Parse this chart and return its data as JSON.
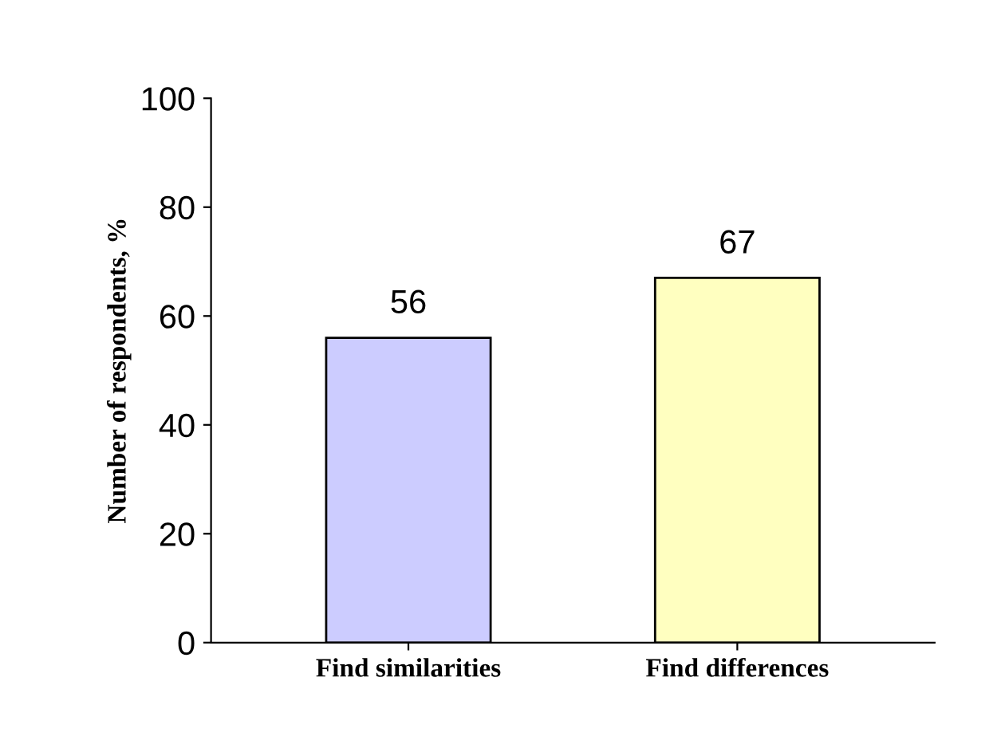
{
  "chart_data": {
    "type": "bar",
    "ylabel": "Number of respondents, %",
    "categories": [
      "Find similarities",
      "Find differences"
    ],
    "values": [
      56,
      67
    ],
    "colors": [
      "#ccccff",
      "#ffffc0"
    ],
    "ylim": [
      0,
      100
    ],
    "yticks": [
      0,
      20,
      40,
      60,
      80,
      100
    ],
    "data_labels": true,
    "grid": false
  }
}
